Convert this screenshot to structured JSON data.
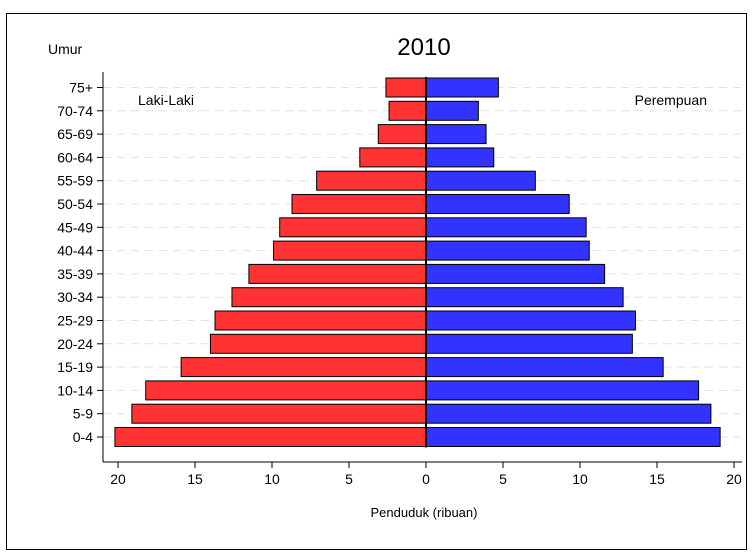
{
  "chart_data": {
    "type": "bar",
    "title": "2010",
    "xlabel": "Penduduk (ribuan)",
    "ylabel": "Umur",
    "categories": [
      "0-4",
      "5-9",
      "10-14",
      "15-19",
      "20-24",
      "25-29",
      "30-34",
      "35-39",
      "40-44",
      "45-49",
      "50-54",
      "55-59",
      "60-64",
      "65-69",
      "70-74",
      "75+"
    ],
    "series": [
      {
        "name": "Laki-Laki",
        "side": "left",
        "color": "#ff3333",
        "values": [
          20.2,
          19.1,
          18.2,
          15.9,
          14.0,
          13.7,
          12.6,
          11.5,
          9.9,
          9.5,
          8.7,
          7.1,
          4.3,
          3.1,
          2.4,
          2.6
        ]
      },
      {
        "name": "Perempuan",
        "side": "right",
        "color": "#3333ff",
        "values": [
          19.1,
          18.5,
          17.7,
          15.4,
          13.4,
          13.6,
          12.8,
          11.6,
          10.6,
          10.4,
          9.3,
          7.1,
          4.4,
          3.9,
          3.4,
          4.7
        ]
      }
    ],
    "xticks": [
      "20",
      "15",
      "10",
      "5",
      "0",
      "5",
      "10",
      "15",
      "20"
    ],
    "xlim": [
      -20,
      20
    ],
    "grid": "horizontal-dashed",
    "legend": "inline-top"
  }
}
